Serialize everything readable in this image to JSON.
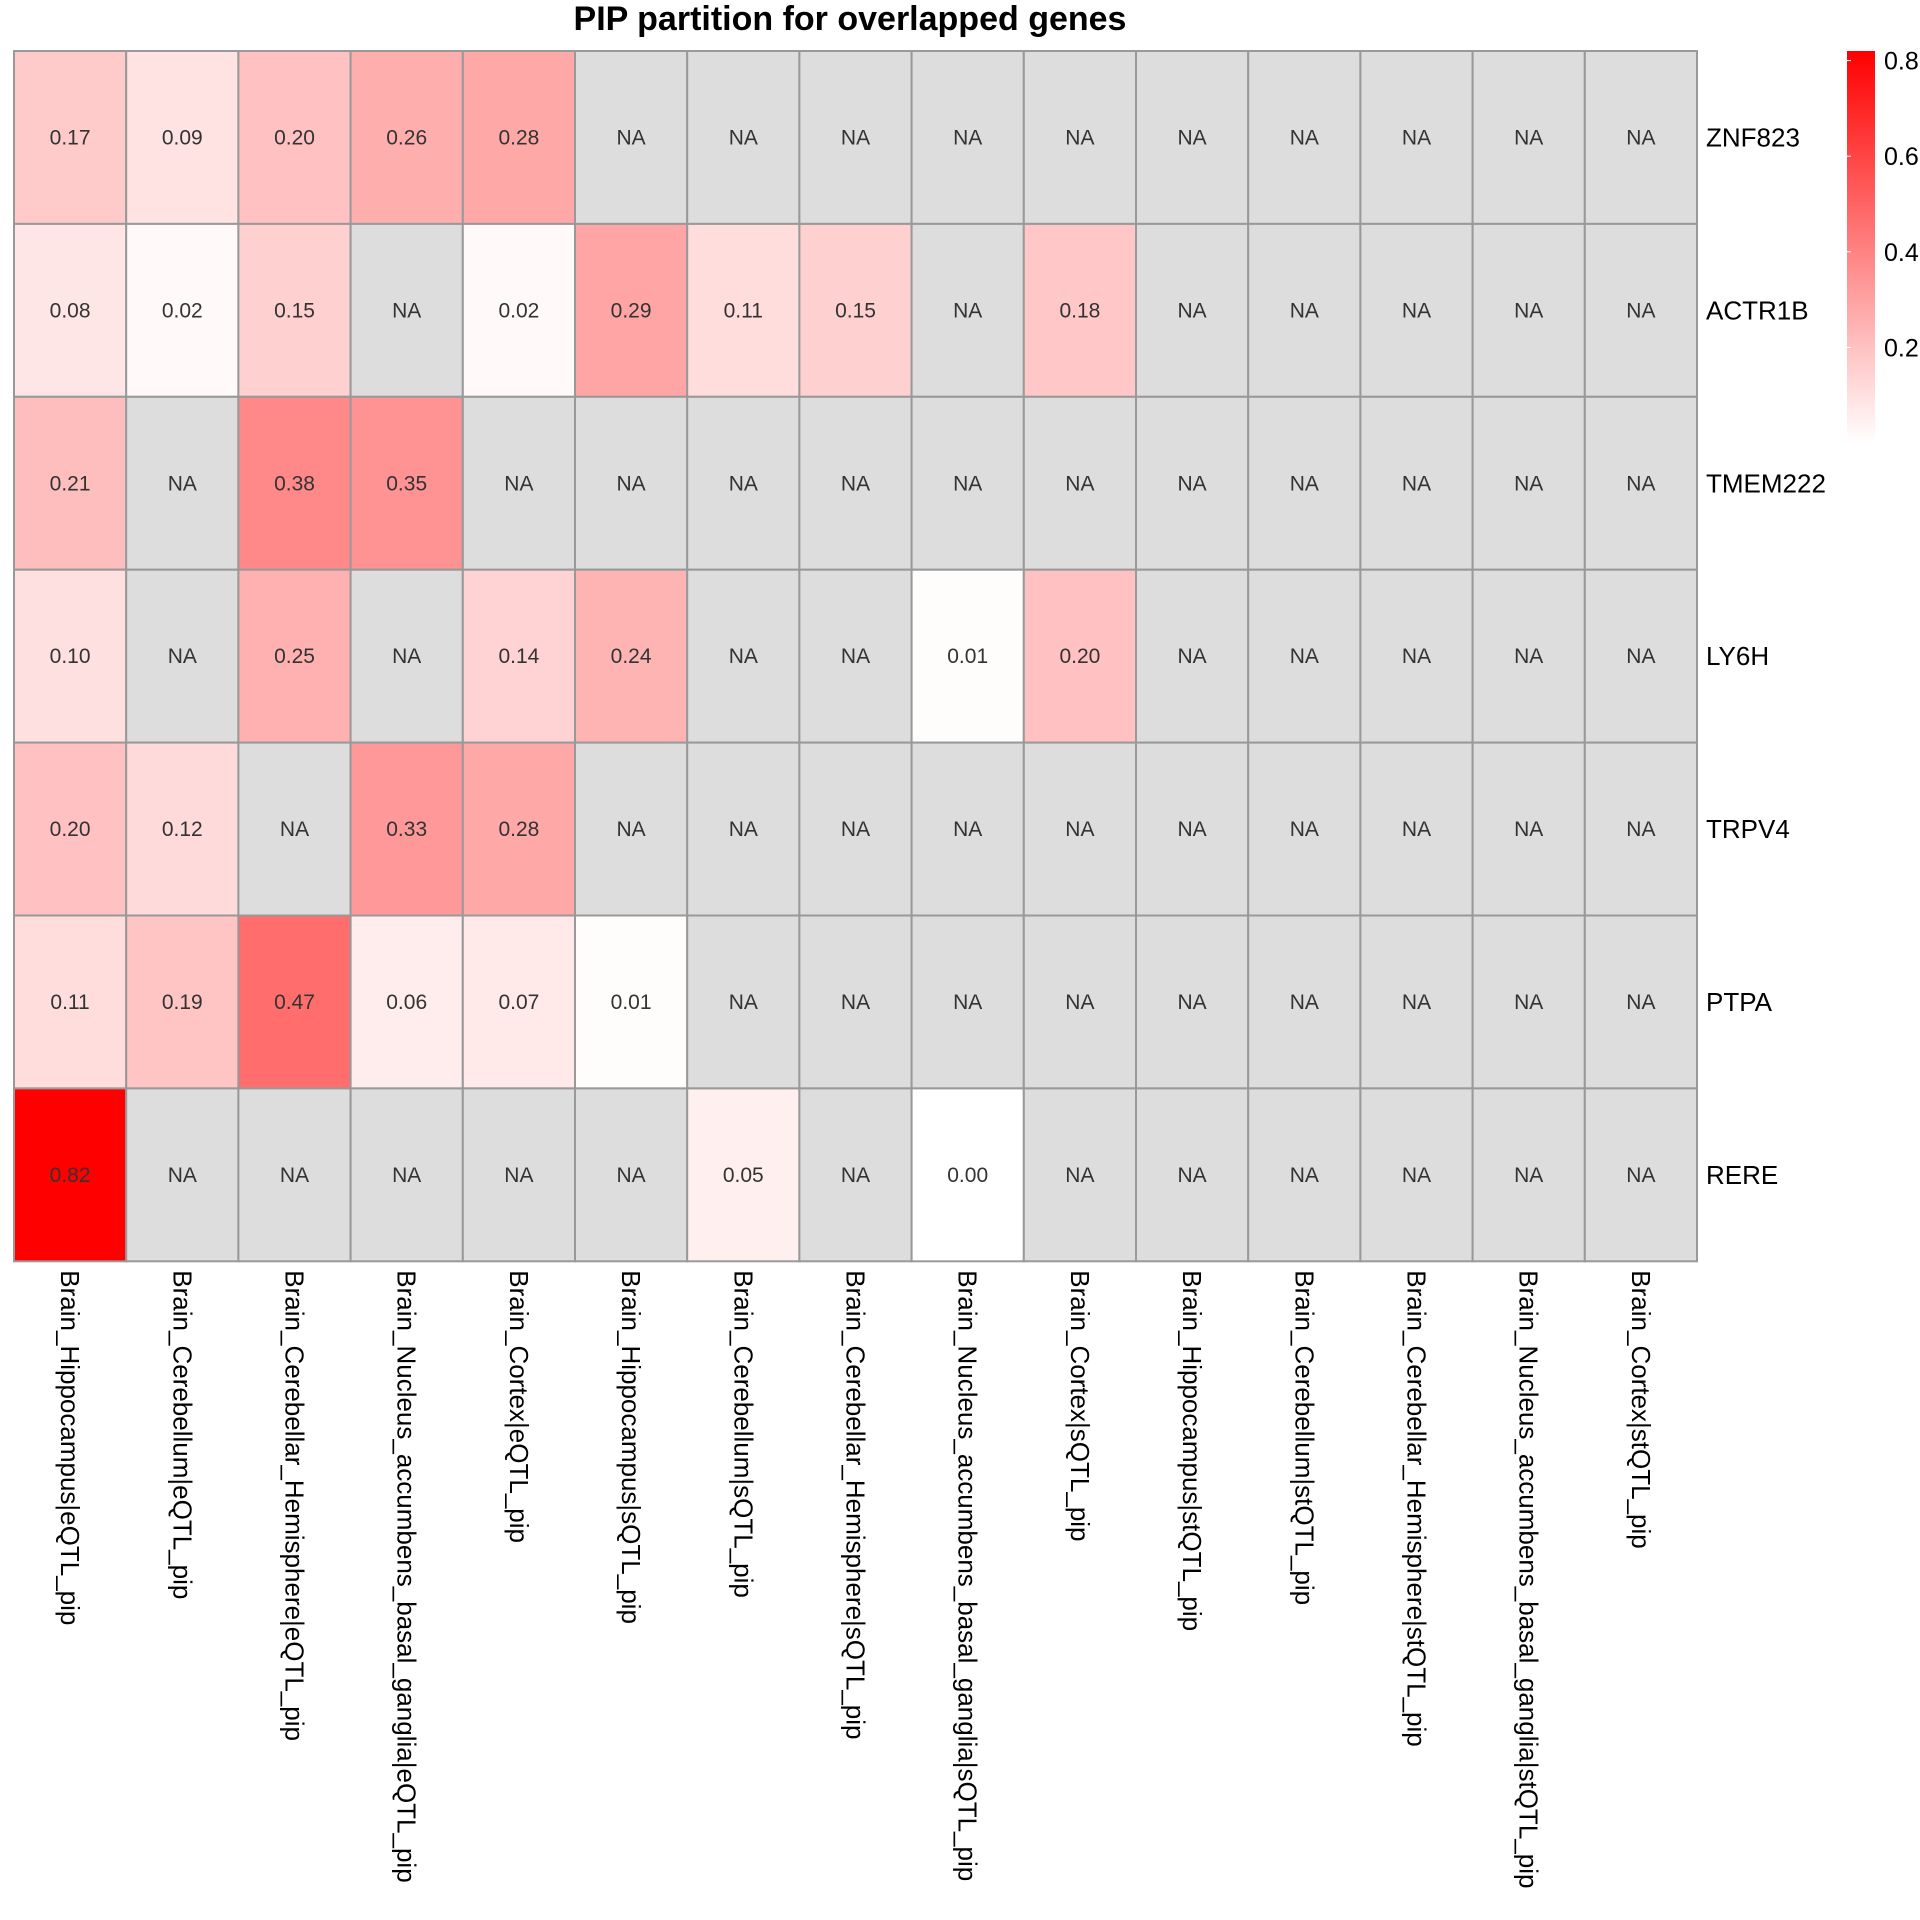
{
  "chart_data": {
    "type": "heatmap",
    "title": "PIP partition for overlapped genes",
    "rows": [
      "ZNF823",
      "ACTR1B",
      "TMEM222",
      "LY6H",
      "TRPV4",
      "PTPA",
      "RERE"
    ],
    "columns": [
      "Brain_Hippocampus|eQTL_pip",
      "Brain_Cerebellum|eQTL_pip",
      "Brain_Cerebellar_Hemisphere|eQTL_pip",
      "Brain_Nucleus_accumbens_basal_ganglia|eQTL_pip",
      "Brain_Cortex|eQTL_pip",
      "Brain_Hippocampus|sQTL_pip",
      "Brain_Cerebellum|sQTL_pip",
      "Brain_Cerebellar_Hemisphere|sQTL_pip",
      "Brain_Nucleus_accumbens_basal_ganglia|sQTL_pip",
      "Brain_Cortex|sQTL_pip",
      "Brain_Hippocampus|stQTL_pip",
      "Brain_Cerebellum|stQTL_pip",
      "Brain_Cerebellar_Hemisphere|stQTL_pip",
      "Brain_Nucleus_accumbens_basal_ganglia|stQTL_pip",
      "Brain_Cortex|stQTL_pip"
    ],
    "values": [
      [
        0.17,
        0.09,
        0.2,
        0.26,
        0.28,
        null,
        null,
        null,
        null,
        null,
        null,
        null,
        null,
        null,
        null
      ],
      [
        0.08,
        0.02,
        0.15,
        null,
        0.02,
        0.29,
        0.11,
        0.15,
        null,
        0.18,
        null,
        null,
        null,
        null,
        null
      ],
      [
        0.21,
        null,
        0.38,
        0.35,
        null,
        null,
        null,
        null,
        null,
        null,
        null,
        null,
        null,
        null,
        null
      ],
      [
        0.1,
        null,
        0.25,
        null,
        0.14,
        0.24,
        null,
        null,
        0.01,
        0.2,
        null,
        null,
        null,
        null,
        null
      ],
      [
        0.2,
        0.12,
        null,
        0.33,
        0.28,
        null,
        null,
        null,
        null,
        null,
        null,
        null,
        null,
        null,
        null
      ],
      [
        0.11,
        0.19,
        0.47,
        0.06,
        0.07,
        0.01,
        null,
        null,
        null,
        null,
        null,
        null,
        null,
        null,
        null
      ],
      [
        0.82,
        null,
        null,
        null,
        null,
        null,
        0.05,
        null,
        0.0,
        null,
        null,
        null,
        null,
        null,
        null
      ]
    ],
    "na_label": "NA",
    "na_color": "#DDDDDD",
    "color_low": "#FFFFFF",
    "color_high": "#FF0000",
    "color_range": [
      0.0,
      0.82
    ],
    "legend_ticks": [
      0.2,
      0.4,
      0.6,
      0.8
    ],
    "legend_position": "right",
    "grid_color": "#999999"
  }
}
